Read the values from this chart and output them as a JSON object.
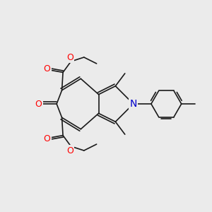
{
  "background_color": "#ebebeb",
  "bond_color": "#1a1a1a",
  "bond_width": 1.2,
  "atom_colors": {
    "O": "#ff0000",
    "N": "#0000cc",
    "C": "#1a1a1a"
  },
  "figsize": [
    3.0,
    3.0
  ],
  "dpi": 100
}
